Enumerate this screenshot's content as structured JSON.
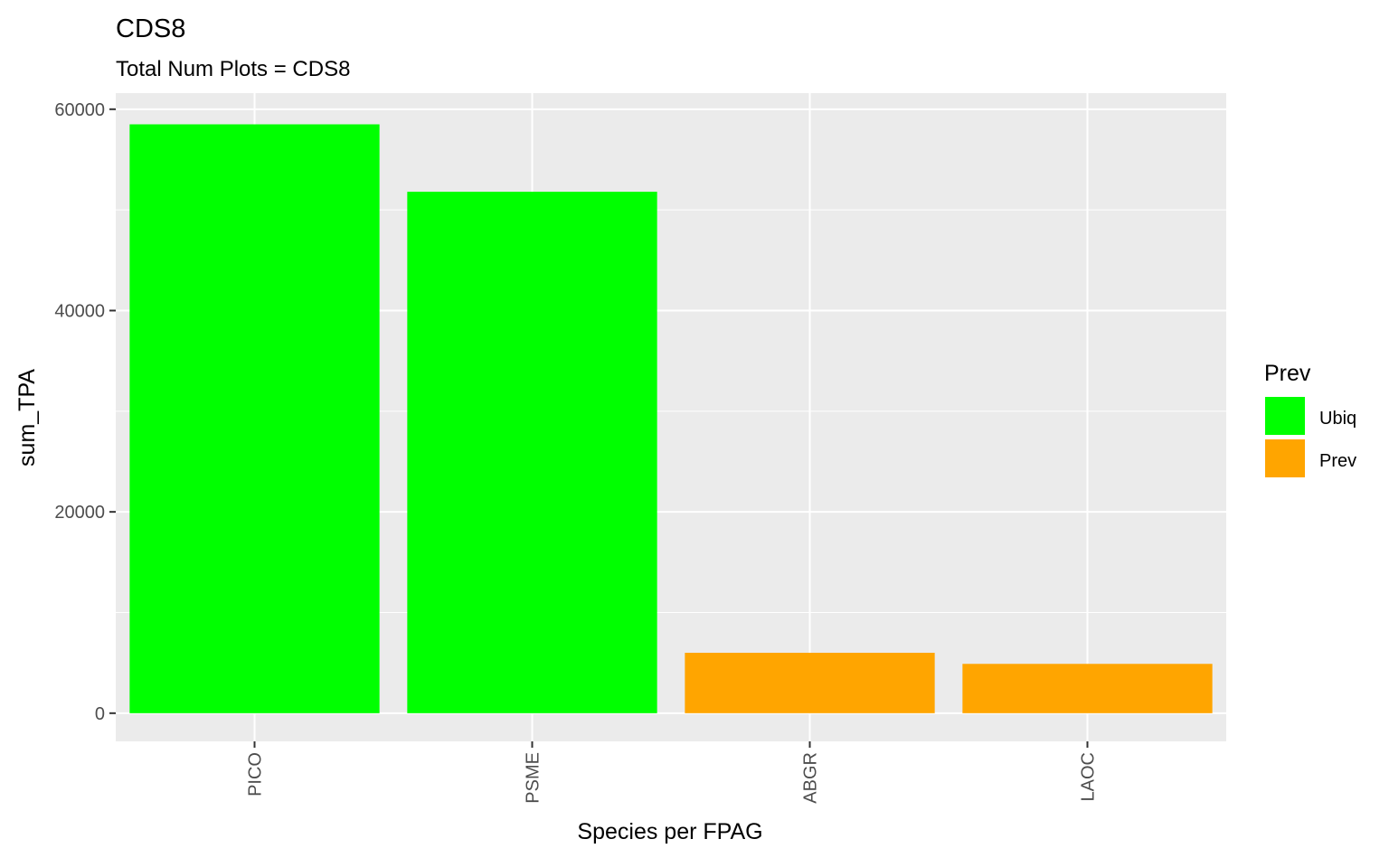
{
  "chart_data": {
    "type": "bar",
    "title": "CDS8",
    "subtitle": "Total Num Plots = CDS8",
    "xlabel": "Species per FPAG",
    "ylabel": "sum_TPA",
    "categories": [
      "PICO",
      "PSME",
      "ABGR",
      "LAOC"
    ],
    "values": [
      58500,
      51800,
      6000,
      4900
    ],
    "groups": [
      "Ubiq",
      "Ubiq",
      "Prev",
      "Prev"
    ],
    "ylim": [
      -2800,
      61600
    ],
    "yticks": [
      0,
      20000,
      40000,
      60000
    ],
    "ytick_labels": [
      "0",
      "20000",
      "40000",
      "60000"
    ],
    "grid": true,
    "legend": {
      "title": "Prev",
      "position": "right",
      "entries": [
        {
          "label": "Ubiq",
          "color": "#00ff00"
        },
        {
          "label": "Prev",
          "color": "#ffa500"
        }
      ]
    },
    "colors": {
      "panel_background": "#ebebeb",
      "grid_line": "#ffffff",
      "tick_text": "#4d4d4d"
    }
  }
}
